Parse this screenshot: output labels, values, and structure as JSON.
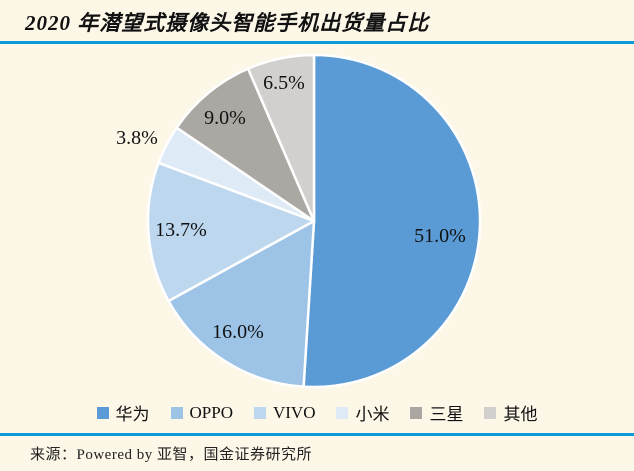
{
  "theme": {
    "background": "#FDF7E8",
    "rule_color": "#0D9BD8",
    "slice_border_color": "#FFFFFF"
  },
  "title": {
    "text": "2020 年潜望式摄像头智能手机出货量占比"
  },
  "chart_data": {
    "type": "pie",
    "title": "2020 年潜望式摄像头智能手机出货量占比",
    "unit": "percent",
    "start_angle_deg": 0,
    "direction": "clockwise",
    "legend_position": "bottom",
    "grid": false,
    "slices": [
      {
        "name": "华为",
        "value": 51.0,
        "label": "51.0%",
        "color": "#5B9BD5"
      },
      {
        "name": "OPPO",
        "value": 16.0,
        "label": "16.0%",
        "color": "#9DC3E6"
      },
      {
        "name": "VIVO",
        "value": 13.7,
        "label": "13.7%",
        "color": "#BDD7EE"
      },
      {
        "name": "小米",
        "value": 3.8,
        "label": "3.8%",
        "color": "#DEEAF6"
      },
      {
        "name": "三星",
        "value": 9.0,
        "label": "9.0%",
        "color": "#ABA7A3"
      },
      {
        "name": "其他",
        "value": 6.5,
        "label": "6.5%",
        "color": "#D2D0CE"
      }
    ]
  },
  "source": {
    "text": "来源：Powered by 亚智，国金证券研究所"
  }
}
